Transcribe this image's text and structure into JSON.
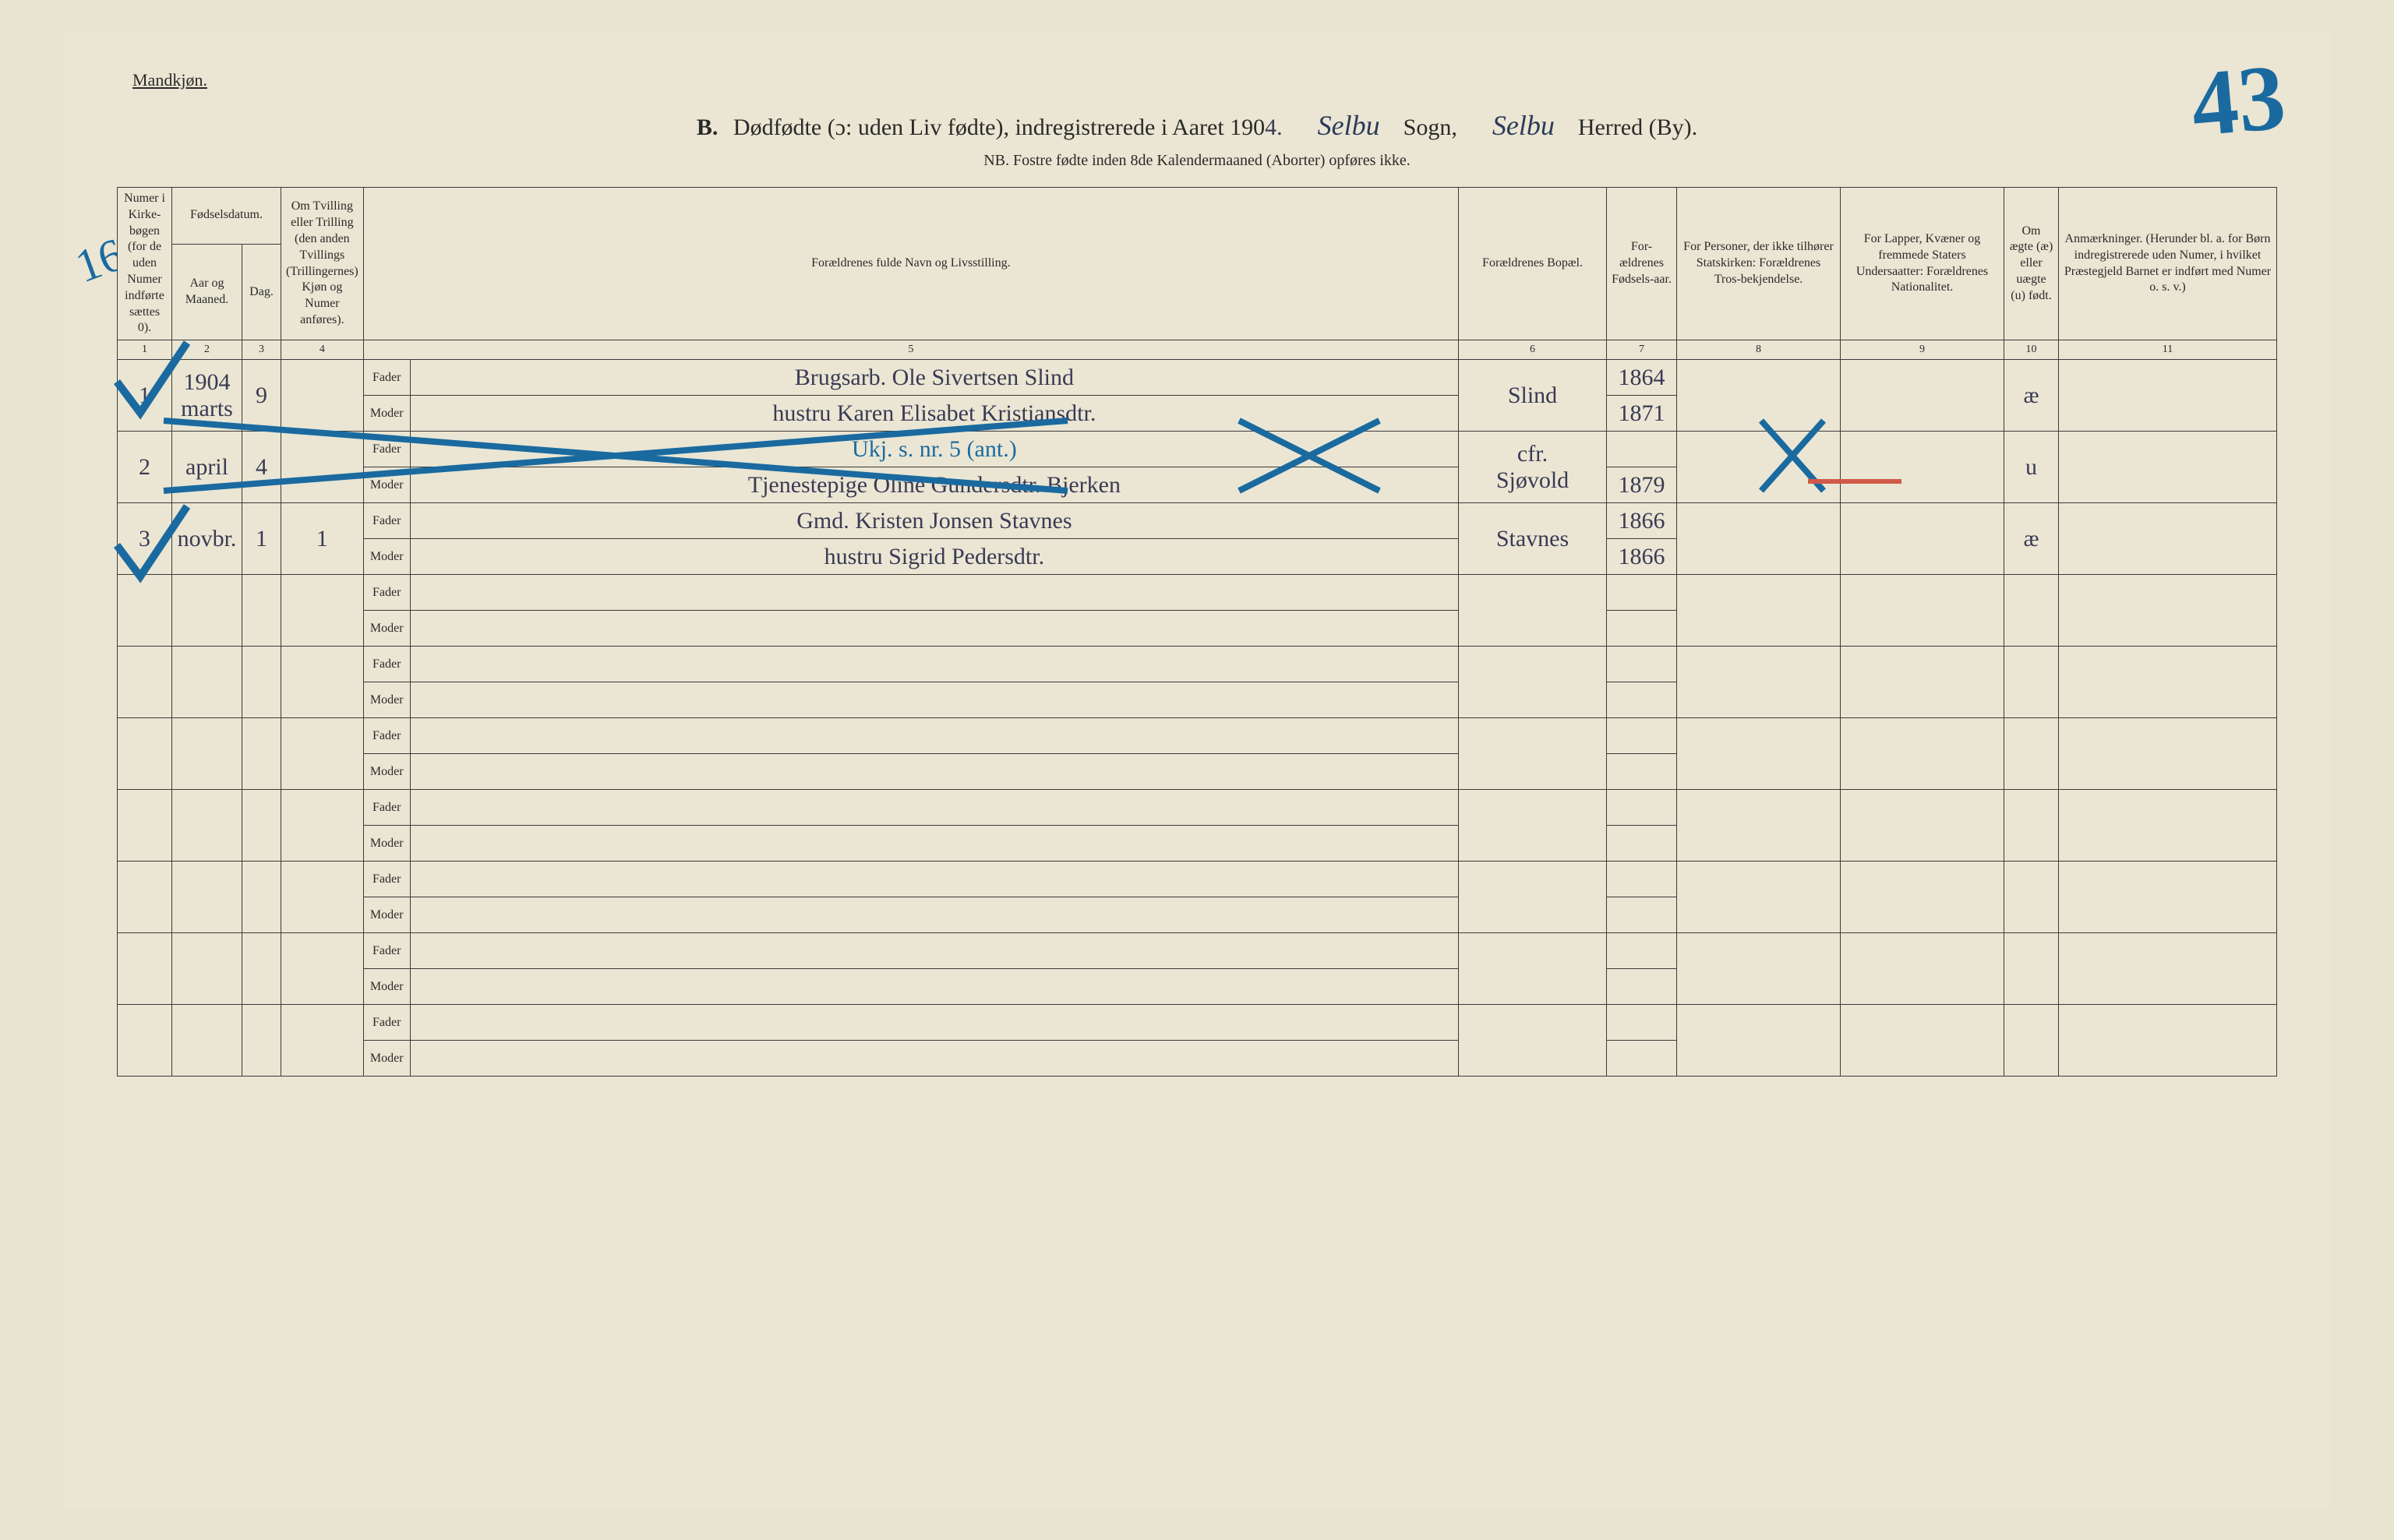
{
  "header": {
    "gender_label": "Mandkjøn.",
    "section_letter": "B.",
    "title_main": "Dødfødte (ɔ: uden Liv fødte), indregistrerede i Aaret 190",
    "title_year_suffix": "4.",
    "title_sogn_hand": "Selbu",
    "title_sogn_printed": "Sogn,",
    "title_herred_hand": "Selbu",
    "title_herred_printed": "Herred (By).",
    "subtitle": "NB. Fostre fødte inden 8de Kalendermaaned (Aborter) opføres ikke.",
    "page_number_hand": "43"
  },
  "marginalia": {
    "side_number_top": "16"
  },
  "columns": {
    "c1": "Numer i Kirke-bøgen (for de uden Numer indførte sættes 0).",
    "c2_group": "Fødselsdatum.",
    "c2a": "Aar og Maaned.",
    "c2b": "Dag.",
    "c4": "Om Tvilling eller Trilling (den anden Tvillings (Trillingernes) Kjøn og Numer anføres).",
    "c5": "Forældrenes fulde Navn og Livsstilling.",
    "c6": "Forældrenes Bopæl.",
    "c7": "For-ældrenes Fødsels-aar.",
    "c8": "For Personer, der ikke tilhører Statskirken: Forældrenes Tros-bekjendelse.",
    "c9": "For Lapper, Kvæner og fremmede Staters Undersaatter: Forældrenes Nationalitet.",
    "c10": "Om ægte (æ) eller uægte (u) født.",
    "c11": "Anmærkninger. (Herunder bl. a. for Børn indregistrerede uden Numer, i hvilket Præstegjeld Barnet er indført med Numer o. s. v.)",
    "nums": [
      "1",
      "2",
      "3",
      "4",
      "5",
      "6",
      "7",
      "8",
      "9",
      "10",
      "11"
    ],
    "fader": "Fader",
    "moder": "Moder"
  },
  "rows": [
    {
      "num": "1",
      "year_month_top": "1904",
      "year_month": "marts",
      "day": "9",
      "twin": "",
      "fader": "Brugsarb. Ole Sivertsen Slind",
      "moder": "hustru Karen Elisabet Kristiansdtr.",
      "residence": "Slind",
      "fader_byear": "1864",
      "moder_byear": "1871",
      "col8": "",
      "col9": "",
      "col10": "æ",
      "col11": "",
      "tick": true,
      "crossed": false
    },
    {
      "num": "2",
      "year_month": "april",
      "day": "4",
      "twin": "",
      "fader_annot": "Ukj. s. nr. 5 (ant.)",
      "fader": "",
      "moder": "Tjenestepige Oline Gundersdtr. Bjerken",
      "residence_top": "cfr.",
      "residence": "Sjøvold",
      "fader_byear": "",
      "moder_byear": "1879",
      "col8": "",
      "col9": "",
      "col10": "u",
      "col11": "",
      "tick": false,
      "crossed": true
    },
    {
      "num": "3",
      "year_month": "novbr.",
      "day": "1",
      "twin": "1",
      "fader": "Gmd. Kristen Jonsen Stavnes",
      "moder": "hustru Sigrid Pedersdtr.",
      "residence": "Stavnes",
      "fader_byear": "1866",
      "moder_byear": "1866",
      "col8": "",
      "col9": "",
      "col10": "æ",
      "col11": "",
      "tick": true,
      "crossed": false
    }
  ],
  "empty_row_count": 7,
  "style": {
    "bg_color": "#eae6d3",
    "ink_color": "#2a2a2a",
    "hand_ink": "#3a3a55",
    "blue_pencil": "#1a6aa0",
    "red_pencil": "#d05a4a",
    "header_fontsize_pt": 22,
    "body_fontsize_pt": 13,
    "hand_fontsize_pt": 22
  }
}
